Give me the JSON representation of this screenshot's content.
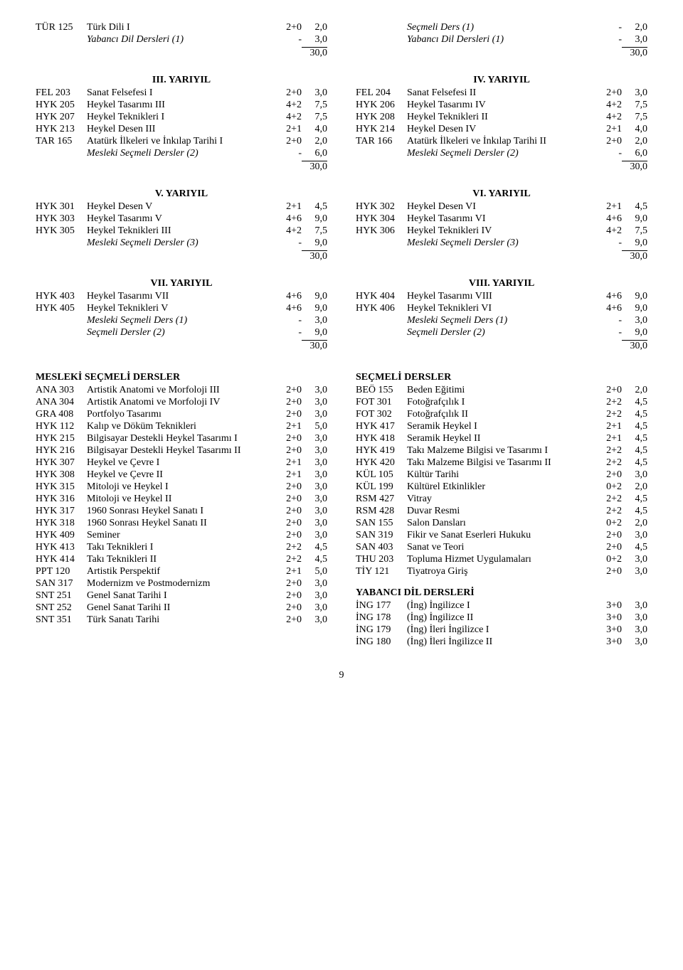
{
  "top": {
    "left": [
      {
        "code": "TÜR 125",
        "name": "Türk Dili I",
        "italic": false,
        "c1": "2+0",
        "c2": "2,0"
      },
      {
        "code": "",
        "name": "Yabancı Dil Dersleri (1)",
        "italic": true,
        "c1": "-",
        "c2": "3,0"
      }
    ],
    "right": [
      {
        "code": "",
        "name": "Seçmeli Ders (1)",
        "italic": true,
        "c1": "-",
        "c2": "2,0"
      },
      {
        "code": "",
        "name": "Yabancı Dil Dersleri (1)",
        "italic": true,
        "c1": "-",
        "c2": "3,0"
      }
    ],
    "totals": {
      "left": "30,0",
      "right": "30,0"
    }
  },
  "terms": [
    {
      "left": {
        "head": "III. YARIYIL",
        "rows": [
          {
            "code": "FEL 203",
            "name": "Sanat Felsefesi I",
            "italic": false,
            "c1": "2+0",
            "c2": "3,0"
          },
          {
            "code": "HYK 205",
            "name": "Heykel Tasarımı III",
            "italic": false,
            "c1": "4+2",
            "c2": "7,5"
          },
          {
            "code": "HYK 207",
            "name": "Heykel Teknikleri I",
            "italic": false,
            "c1": "4+2",
            "c2": "7,5"
          },
          {
            "code": "HYK 213",
            "name": "Heykel Desen III",
            "italic": false,
            "c1": "2+1",
            "c2": "4,0"
          },
          {
            "code": "TAR 165",
            "name": "Atatürk İlkeleri ve İnkılap Tarihi I",
            "italic": false,
            "c1": "2+0",
            "c2": "2,0"
          },
          {
            "code": "",
            "name": "Mesleki Seçmeli Dersler (2)",
            "italic": true,
            "c1": "-",
            "c2": "6,0"
          }
        ],
        "total": "30,0"
      },
      "right": {
        "head": "IV. YARIYIL",
        "rows": [
          {
            "code": "FEL 204",
            "name": "Sanat Felsefesi II",
            "italic": false,
            "c1": "2+0",
            "c2": "3,0"
          },
          {
            "code": "HYK 206",
            "name": "Heykel Tasarımı IV",
            "italic": false,
            "c1": "4+2",
            "c2": "7,5"
          },
          {
            "code": "HYK 208",
            "name": "Heykel Teknikleri II",
            "italic": false,
            "c1": "4+2",
            "c2": "7,5"
          },
          {
            "code": "HYK 214",
            "name": "Heykel Desen IV",
            "italic": false,
            "c1": "2+1",
            "c2": "4,0"
          },
          {
            "code": "TAR 166",
            "name": "Atatürk İlkeleri ve İnkılap Tarihi II",
            "italic": false,
            "c1": "2+0",
            "c2": "2,0"
          },
          {
            "code": "",
            "name": "Mesleki Seçmeli Dersler (2)",
            "italic": true,
            "c1": "-",
            "c2": "6,0"
          }
        ],
        "total": "30,0"
      }
    },
    {
      "left": {
        "head": "V. YARIYIL",
        "rows": [
          {
            "code": "HYK 301",
            "name": "Heykel Desen V",
            "italic": false,
            "c1": "2+1",
            "c2": "4,5"
          },
          {
            "code": "HYK 303",
            "name": "Heykel Tasarımı V",
            "italic": false,
            "c1": "4+6",
            "c2": "9,0"
          },
          {
            "code": "HYK 305",
            "name": "Heykel Teknikleri III",
            "italic": false,
            "c1": "4+2",
            "c2": "7,5"
          },
          {
            "code": "",
            "name": "Mesleki Seçmeli Dersler (3)",
            "italic": true,
            "c1": "-",
            "c2": "9,0"
          }
        ],
        "total": "30,0"
      },
      "right": {
        "head": "VI. YARIYIL",
        "rows": [
          {
            "code": "HYK 302",
            "name": "Heykel Desen VI",
            "italic": false,
            "c1": "2+1",
            "c2": "4,5"
          },
          {
            "code": "HYK 304",
            "name": "Heykel Tasarımı VI",
            "italic": false,
            "c1": "4+6",
            "c2": "9,0"
          },
          {
            "code": "HYK 306",
            "name": "Heykel Teknikleri IV",
            "italic": false,
            "c1": "4+2",
            "c2": "7,5"
          },
          {
            "code": "",
            "name": "Mesleki Seçmeli Dersler (3)",
            "italic": true,
            "c1": "-",
            "c2": "9,0"
          }
        ],
        "total": "30,0"
      }
    },
    {
      "left": {
        "head": "VII. YARIYIL",
        "rows": [
          {
            "code": "HYK 403",
            "name": "Heykel Tasarımı VII",
            "italic": false,
            "c1": "4+6",
            "c2": "9,0"
          },
          {
            "code": "HYK 405",
            "name": "Heykel Teknikleri V",
            "italic": false,
            "c1": "4+6",
            "c2": "9,0"
          },
          {
            "code": "",
            "name": "Mesleki Seçmeli Ders (1)",
            "italic": true,
            "c1": "-",
            "c2": "3,0"
          },
          {
            "code": "",
            "name": "Seçmeli Dersler (2)",
            "italic": true,
            "c1": "-",
            "c2": "9,0"
          }
        ],
        "total": "30,0"
      },
      "right": {
        "head": "VIII. YARIYIL",
        "rows": [
          {
            "code": "HYK 404",
            "name": "Heykel Tasarımı VIII",
            "italic": false,
            "c1": "4+6",
            "c2": "9,0"
          },
          {
            "code": "HYK 406",
            "name": "Heykel Teknikleri VI",
            "italic": false,
            "c1": "4+6",
            "c2": "9,0"
          },
          {
            "code": "",
            "name": "Mesleki Seçmeli Ders (1)",
            "italic": true,
            "c1": "-",
            "c2": "3,0"
          },
          {
            "code": "",
            "name": "Seçmeli Dersler (2)",
            "italic": true,
            "c1": "-",
            "c2": "9,0"
          }
        ],
        "total": "30,0"
      }
    }
  ],
  "bottom": {
    "left": {
      "head": "MESLEKİ SEÇMELİ DERSLER",
      "rows": [
        {
          "code": "ANA 303",
          "name": "Artistik Anatomi ve Morfoloji III",
          "italic": false,
          "c1": "2+0",
          "c2": "3,0"
        },
        {
          "code": "ANA 304",
          "name": "Artistik Anatomi ve Morfoloji IV",
          "italic": false,
          "c1": "2+0",
          "c2": "3,0"
        },
        {
          "code": "GRA 408",
          "name": "Portfolyo Tasarımı",
          "italic": false,
          "c1": "2+0",
          "c2": "3,0"
        },
        {
          "code": "HYK 112",
          "name": "Kalıp ve Döküm Teknikleri",
          "italic": false,
          "c1": "2+1",
          "c2": "5,0"
        },
        {
          "code": "HYK 215",
          "name": "Bilgisayar Destekli Heykel Tasarımı I",
          "italic": false,
          "c1": "2+0",
          "c2": "3,0"
        },
        {
          "code": "HYK 216",
          "name": "Bilgisayar Destekli Heykel Tasarımı II",
          "italic": false,
          "c1": "2+0",
          "c2": "3,0"
        },
        {
          "code": "HYK 307",
          "name": "Heykel ve Çevre I",
          "italic": false,
          "c1": "2+1",
          "c2": "3,0"
        },
        {
          "code": "HYK 308",
          "name": "Heykel ve Çevre II",
          "italic": false,
          "c1": "2+1",
          "c2": "3,0"
        },
        {
          "code": "HYK 315",
          "name": "Mitoloji ve Heykel I",
          "italic": false,
          "c1": "2+0",
          "c2": "3,0"
        },
        {
          "code": "HYK 316",
          "name": "Mitoloji ve Heykel II",
          "italic": false,
          "c1": "2+0",
          "c2": "3,0"
        },
        {
          "code": "HYK 317",
          "name": "1960 Sonrası Heykel Sanatı I",
          "italic": false,
          "c1": "2+0",
          "c2": "3,0"
        },
        {
          "code": "HYK 318",
          "name": "1960 Sonrası Heykel Sanatı II",
          "italic": false,
          "c1": "2+0",
          "c2": "3,0"
        },
        {
          "code": "HYK 409",
          "name": "Seminer",
          "italic": false,
          "c1": "2+0",
          "c2": "3,0"
        },
        {
          "code": "HYK 413",
          "name": "Takı Teknikleri I",
          "italic": false,
          "c1": "2+2",
          "c2": "4,5"
        },
        {
          "code": "HYK 414",
          "name": "Takı Teknikleri II",
          "italic": false,
          "c1": "2+2",
          "c2": "4,5"
        },
        {
          "code": "PPT 120",
          "name": "Artistik Perspektif",
          "italic": false,
          "c1": "2+1",
          "c2": "5,0"
        },
        {
          "code": "SAN 317",
          "name": "Modernizm ve Postmodernizm",
          "italic": false,
          "c1": "2+0",
          "c2": "3,0"
        },
        {
          "code": "SNT 251",
          "name": "Genel Sanat Tarihi I",
          "italic": false,
          "c1": "2+0",
          "c2": "3,0"
        },
        {
          "code": "SNT 252",
          "name": "Genel Sanat Tarihi II",
          "italic": false,
          "c1": "2+0",
          "c2": "3,0"
        },
        {
          "code": "SNT 351",
          "name": "Türk Sanatı Tarihi",
          "italic": false,
          "c1": "2+0",
          "c2": "3,0"
        }
      ]
    },
    "right1": {
      "head": "SEÇMELİ DERSLER",
      "rows": [
        {
          "code": "BEÖ 155",
          "name": "Beden Eğitimi",
          "italic": false,
          "c1": "2+0",
          "c2": "2,0"
        },
        {
          "code": "FOT 301",
          "name": "Fotoğrafçılık I",
          "italic": false,
          "c1": "2+2",
          "c2": "4,5"
        },
        {
          "code": "FOT 302",
          "name": "Fotoğrafçılık II",
          "italic": false,
          "c1": "2+2",
          "c2": "4,5"
        },
        {
          "code": "HYK 417",
          "name": "Seramik Heykel I",
          "italic": false,
          "c1": "2+1",
          "c2": "4,5"
        },
        {
          "code": "HYK 418",
          "name": "Seramik Heykel II",
          "italic": false,
          "c1": "2+1",
          "c2": "4,5"
        },
        {
          "code": "HYK 419",
          "name": "Takı Malzeme Bilgisi ve Tasarımı I",
          "italic": false,
          "c1": "2+2",
          "c2": "4,5"
        },
        {
          "code": "HYK 420",
          "name": "Takı Malzeme Bilgisi ve Tasarımı II",
          "italic": false,
          "c1": "2+2",
          "c2": "4,5"
        },
        {
          "code": "KÜL 105",
          "name": "Kültür Tarihi",
          "italic": false,
          "c1": "2+0",
          "c2": "3,0"
        },
        {
          "code": "KÜL 199",
          "name": "Kültürel Etkinlikler",
          "italic": false,
          "c1": "0+2",
          "c2": "2,0"
        },
        {
          "code": "RSM 427",
          "name": "Vitray",
          "italic": false,
          "c1": "2+2",
          "c2": "4,5"
        },
        {
          "code": "RSM 428",
          "name": "Duvar Resmi",
          "italic": false,
          "c1": "2+2",
          "c2": "4,5"
        },
        {
          "code": "SAN 155",
          "name": "Salon Dansları",
          "italic": false,
          "c1": "0+2",
          "c2": "2,0"
        },
        {
          "code": "SAN 319",
          "name": "Fikir ve Sanat Eserleri Hukuku",
          "italic": false,
          "c1": "2+0",
          "c2": "3,0"
        },
        {
          "code": "SAN 403",
          "name": "Sanat ve Teori",
          "italic": false,
          "c1": "2+0",
          "c2": "4,5"
        },
        {
          "code": "THU 203",
          "name": "Topluma Hizmet Uygulamaları",
          "italic": false,
          "c1": "0+2",
          "c2": "3,0"
        },
        {
          "code": "TİY 121",
          "name": "Tiyatroya Giriş",
          "italic": false,
          "c1": "2+0",
          "c2": "3,0"
        }
      ]
    },
    "right2": {
      "head": "YABANCI DİL DERSLERİ",
      "rows": [
        {
          "code": "İNG 177",
          "name": "(İng) İngilizce I",
          "italic": false,
          "c1": "3+0",
          "c2": "3,0"
        },
        {
          "code": "İNG 178",
          "name": "(İng) İngilizce II",
          "italic": false,
          "c1": "3+0",
          "c2": "3,0"
        },
        {
          "code": "İNG 179",
          "name": "(İng) İleri İngilizce I",
          "italic": false,
          "c1": "3+0",
          "c2": "3,0"
        },
        {
          "code": "İNG 180",
          "name": "(İng) İleri İngilizce II",
          "italic": false,
          "c1": "3+0",
          "c2": "3,0"
        }
      ]
    }
  },
  "page_number": "9"
}
